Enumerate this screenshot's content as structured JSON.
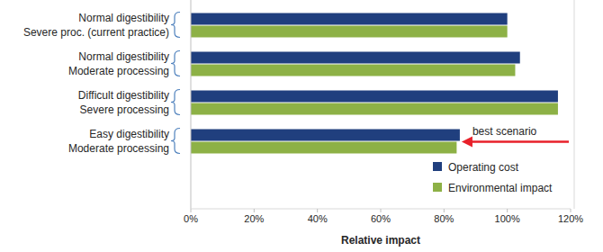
{
  "chart_data": {
    "type": "bar",
    "orientation": "horizontal",
    "categories": [
      "Normal digestibility\nSevere proc. (current practice)",
      "Normal digestibility\nModerate processing",
      "Difficult digestibility\nSevere processing",
      "Easy digestibility\nModerate processing"
    ],
    "series": [
      {
        "name": "Operating cost",
        "color": "#203f7e",
        "values": [
          100,
          104,
          116,
          85
        ]
      },
      {
        "name": "Environmental impact",
        "color": "#8db146",
        "values": [
          100,
          102.5,
          116,
          84
        ]
      }
    ],
    "x_label": "Relative impact",
    "annotation": "best scenario",
    "xlim": [
      0,
      120
    ],
    "xticks": [
      {
        "value": 0,
        "label": "0%"
      },
      {
        "value": 20,
        "label": "20%"
      },
      {
        "value": 40,
        "label": "40%"
      },
      {
        "value": 60,
        "label": "60%"
      },
      {
        "value": 80,
        "label": "80%"
      },
      {
        "value": 100,
        "label": "100%"
      },
      {
        "value": 120,
        "label": "120%"
      }
    ],
    "grid": false,
    "legend": "lower right"
  }
}
